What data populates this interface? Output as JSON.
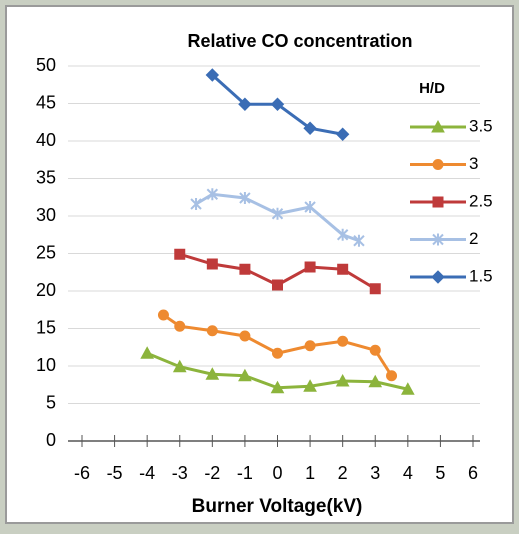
{
  "chart_data": {
    "type": "line",
    "title": "Relative CO concentration",
    "xlabel": "Burner Voltage(kV)",
    "legend_title": "H/D",
    "legend": "right",
    "grid": true,
    "xlim": [
      -6,
      6
    ],
    "xticks": [
      -6,
      -5,
      -4,
      -3,
      -2,
      -1,
      0,
      1,
      2,
      3,
      4,
      5,
      6
    ],
    "ylim": [
      0,
      50
    ],
    "yticks": [
      0,
      5,
      10,
      15,
      20,
      25,
      30,
      35,
      40,
      45,
      50
    ],
    "series": [
      {
        "name": "3.5",
        "color": "#8cb43c",
        "marker": "triangle",
        "x": [
          -4,
          -3,
          -2,
          -1,
          0,
          1,
          2,
          3,
          4
        ],
        "values": [
          11.7,
          9.9,
          8.9,
          8.7,
          7.1,
          7.3,
          8.0,
          7.9,
          6.9
        ]
      },
      {
        "name": "3",
        "color": "#ee8a30",
        "marker": "circle",
        "x": [
          -3.5,
          -3,
          -2,
          -1,
          0,
          1,
          2,
          3,
          3.5
        ],
        "values": [
          16.8,
          15.3,
          14.7,
          14.0,
          11.7,
          12.7,
          13.3,
          12.1,
          8.7
        ]
      },
      {
        "name": "2.5",
        "color": "#bf3a3a",
        "marker": "square",
        "x": [
          -3,
          -2,
          -1,
          0,
          1,
          2,
          3
        ],
        "values": [
          24.9,
          23.6,
          22.9,
          20.8,
          23.2,
          22.9,
          20.3
        ]
      },
      {
        "name": "2",
        "color": "#a7c0e4",
        "marker": "cross",
        "x": [
          -2.5,
          -2,
          -1,
          0,
          1,
          2,
          2.5
        ],
        "values": [
          31.6,
          32.9,
          32.4,
          30.3,
          31.2,
          27.5,
          26.7
        ]
      },
      {
        "name": "1.5",
        "color": "#3b6db5",
        "marker": "diamond",
        "x": [
          -2,
          -1,
          0,
          1,
          2
        ],
        "values": [
          48.8,
          44.9,
          44.9,
          41.7,
          40.9
        ]
      }
    ]
  }
}
